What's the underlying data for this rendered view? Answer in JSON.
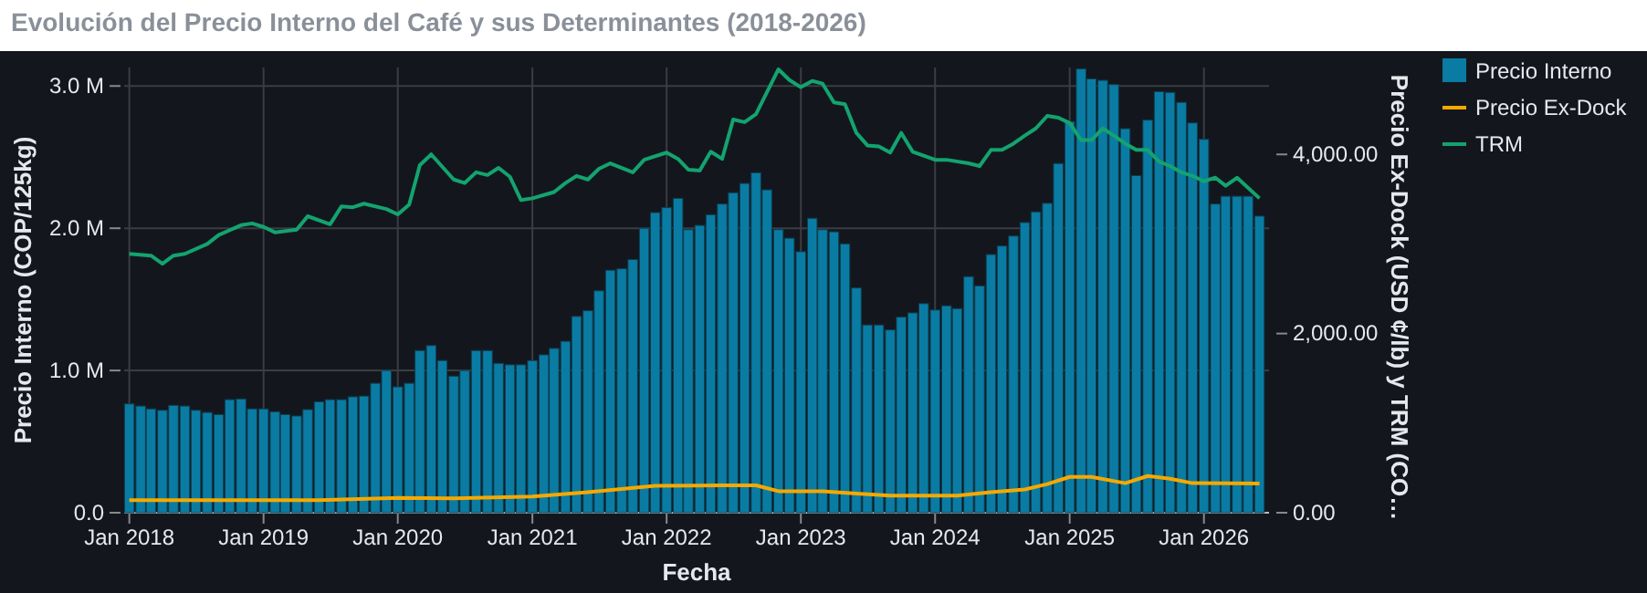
{
  "chart_data": {
    "type": "bar",
    "title": "Evolución del Precio Interno del Café y sus Determinantes (2018-2026)",
    "xlabel": "Fecha",
    "ylabel": "Precio Interno (COP/125kg)",
    "y2label": "Precio Ex-Dock (USD ¢/lb) y TRM (CO…",
    "x": [
      "2018-01",
      "2018-02",
      "2018-03",
      "2018-04",
      "2018-05",
      "2018-06",
      "2018-07",
      "2018-08",
      "2018-09",
      "2018-10",
      "2018-11",
      "2018-12",
      "2019-01",
      "2019-02",
      "2019-03",
      "2019-04",
      "2019-05",
      "2019-06",
      "2019-07",
      "2019-08",
      "2019-09",
      "2019-10",
      "2019-11",
      "2019-12",
      "2020-01",
      "2020-02",
      "2020-03",
      "2020-04",
      "2020-05",
      "2020-06",
      "2020-07",
      "2020-08",
      "2020-09",
      "2020-10",
      "2020-11",
      "2020-12",
      "2021-01",
      "2021-02",
      "2021-03",
      "2021-04",
      "2021-05",
      "2021-06",
      "2021-07",
      "2021-08",
      "2021-09",
      "2021-10",
      "2021-11",
      "2021-12",
      "2022-01",
      "2022-02",
      "2022-03",
      "2022-04",
      "2022-05",
      "2022-06",
      "2022-07",
      "2022-08",
      "2022-09",
      "2022-10",
      "2022-11",
      "2022-12",
      "2023-01",
      "2023-02",
      "2023-03",
      "2023-04",
      "2023-05",
      "2023-06",
      "2023-07",
      "2023-08",
      "2023-09",
      "2023-10",
      "2023-11",
      "2023-12",
      "2024-01",
      "2024-02",
      "2024-03",
      "2024-04",
      "2024-05",
      "2024-06",
      "2024-07",
      "2024-08",
      "2024-09",
      "2024-10",
      "2024-11",
      "2024-12",
      "2025-01",
      "2025-02",
      "2025-03",
      "2025-04",
      "2025-05",
      "2025-06",
      "2025-07",
      "2025-08",
      "2025-09",
      "2025-10",
      "2025-11",
      "2025-12",
      "2026-01",
      "2026-02",
      "2026-03",
      "2026-04",
      "2026-05",
      "2026-06"
    ],
    "series": [
      {
        "name": "Precio Interno",
        "color": "#0a7ca3",
        "values": [
          765000,
          750000,
          730000,
          720000,
          755000,
          750000,
          720000,
          705000,
          690000,
          795000,
          800000,
          730000,
          730000,
          710000,
          690000,
          680000,
          725000,
          780000,
          795000,
          795000,
          815000,
          820000,
          910000,
          1000000,
          885000,
          910000,
          1140000,
          1175000,
          1070000,
          960000,
          1000000,
          1140000,
          1140000,
          1050000,
          1040000,
          1040000,
          1070000,
          1110000,
          1155000,
          1205000,
          1380000,
          1420000,
          1560000,
          1705000,
          1715000,
          1780000,
          2000000,
          2110000,
          2145000,
          2210000,
          1990000,
          2020000,
          2095000,
          2170000,
          2250000,
          2315000,
          2390000,
          2270000,
          1990000,
          1930000,
          1835000,
          2070000,
          1990000,
          1975000,
          1890000,
          1580000,
          1320000,
          1320000,
          1285000,
          1375000,
          1405000,
          1470000,
          1425000,
          1455000,
          1435000,
          1660000,
          1595000,
          1815000,
          1875000,
          1945000,
          2040000,
          2115000,
          2175000,
          2455000,
          2750000,
          3120000,
          3050000,
          3040000,
          3010000,
          2700000,
          2370000,
          2760000,
          2960000,
          2955000,
          2885000,
          2740000,
          2625000,
          2170000,
          2225000,
          2225000,
          2225000,
          2085000
        ]
      },
      {
        "name": "Precio Ex-Dock",
        "type": "line",
        "axis": "y2",
        "color": "#f5a800",
        "x": [
          "2018-01",
          "2019-06",
          "2020-01",
          "2020-06",
          "2021-01",
          "2021-06",
          "2021-12",
          "2022-06",
          "2022-09",
          "2022-11",
          "2023-03",
          "2023-06",
          "2023-09",
          "2024-03",
          "2024-06",
          "2024-09",
          "2024-11",
          "2025-01",
          "2025-03",
          "2025-06",
          "2025-08",
          "2025-10",
          "2025-12",
          "2026-06"
        ],
        "values": [
          140,
          140,
          165,
          160,
          180,
          230,
          300,
          305,
          305,
          240,
          240,
          215,
          190,
          190,
          230,
          260,
          320,
          400,
          400,
          330,
          410,
          380,
          330,
          325
        ]
      },
      {
        "name": "TRM",
        "type": "line",
        "axis": "y2",
        "color": "#14a36f",
        "x": [
          "2018-01",
          "2018-03",
          "2018-04",
          "2018-05",
          "2018-06",
          "2018-08",
          "2018-09",
          "2018-11",
          "2018-12",
          "2019-01",
          "2019-02",
          "2019-04",
          "2019-05",
          "2019-07",
          "2019-08",
          "2019-09",
          "2019-10",
          "2019-12",
          "2020-01",
          "2020-02",
          "2020-03",
          "2020-04",
          "2020-06",
          "2020-07",
          "2020-08",
          "2020-09",
          "2020-10",
          "2020-11",
          "2020-12",
          "2021-01",
          "2021-03",
          "2021-04",
          "2021-05",
          "2021-06",
          "2021-07",
          "2021-08",
          "2021-10",
          "2021-11",
          "2022-01",
          "2022-02",
          "2022-03",
          "2022-04",
          "2022-05",
          "2022-06",
          "2022-07",
          "2022-08",
          "2022-09",
          "2022-11",
          "2022-12",
          "2023-01",
          "2023-02",
          "2023-03",
          "2023-04",
          "2023-05",
          "2023-06",
          "2023-07",
          "2023-08",
          "2023-09",
          "2023-10",
          "2023-11",
          "2024-01",
          "2024-02",
          "2024-04",
          "2024-05",
          "2024-06",
          "2024-07",
          "2024-08",
          "2024-09",
          "2024-10",
          "2024-11",
          "2024-12",
          "2025-01",
          "2025-02",
          "2025-03",
          "2025-04",
          "2025-05",
          "2025-06",
          "2025-07",
          "2025-08",
          "2025-09",
          "2025-10",
          "2025-11",
          "2025-12",
          "2026-01",
          "2026-02",
          "2026-03",
          "2026-04",
          "2026-06"
        ],
        "values": [
          2890,
          2870,
          2780,
          2870,
          2890,
          3000,
          3100,
          3210,
          3230,
          3190,
          3130,
          3160,
          3310,
          3220,
          3420,
          3410,
          3450,
          3390,
          3330,
          3440,
          3880,
          4000,
          3720,
          3680,
          3800,
          3770,
          3850,
          3750,
          3490,
          3510,
          3580,
          3680,
          3760,
          3720,
          3840,
          3900,
          3800,
          3940,
          4020,
          3950,
          3830,
          3820,
          4030,
          3950,
          4390,
          4360,
          4450,
          4950,
          4830,
          4750,
          4820,
          4790,
          4580,
          4560,
          4240,
          4100,
          4090,
          4020,
          4240,
          4030,
          3940,
          3940,
          3900,
          3870,
          4050,
          4050,
          4120,
          4210,
          4290,
          4430,
          4410,
          4350,
          4160,
          4160,
          4290,
          4210,
          4120,
          4050,
          4050,
          3920,
          3870,
          3800,
          3760,
          3700,
          3740,
          3650,
          3740,
          3510
        ]
      }
    ],
    "xlim": [
      "2017-12-18",
      "2026-06-27"
    ],
    "xticks": [
      {
        "value": "2018-01",
        "label": "Jan 2018"
      },
      {
        "value": "2019-01",
        "label": "Jan 2019"
      },
      {
        "value": "2020-01",
        "label": "Jan 2020"
      },
      {
        "value": "2021-01",
        "label": "Jan 2021"
      },
      {
        "value": "2022-01",
        "label": "Jan 2022"
      },
      {
        "value": "2023-01",
        "label": "Jan 2023"
      },
      {
        "value": "2024-01",
        "label": "Jan 2024"
      },
      {
        "value": "2025-01",
        "label": "Jan 2025"
      },
      {
        "value": "2026-01",
        "label": "Jan 2026"
      }
    ],
    "ylim": [
      0,
      3130000
    ],
    "yticks": [
      {
        "value": 0,
        "label": "0.0"
      },
      {
        "value": 1000000,
        "label": "1.0 M"
      },
      {
        "value": 2000000,
        "label": "2.0 M"
      },
      {
        "value": 3000000,
        "label": "3.0 M"
      }
    ],
    "y2lim": [
      0,
      4970
    ],
    "y2ticks": [
      {
        "value": 0,
        "label": "0.00"
      },
      {
        "value": 2000,
        "label": "2,000.00"
      },
      {
        "value": 4000,
        "label": "4,000.00"
      }
    ],
    "grid": true,
    "legend": "top right"
  }
}
